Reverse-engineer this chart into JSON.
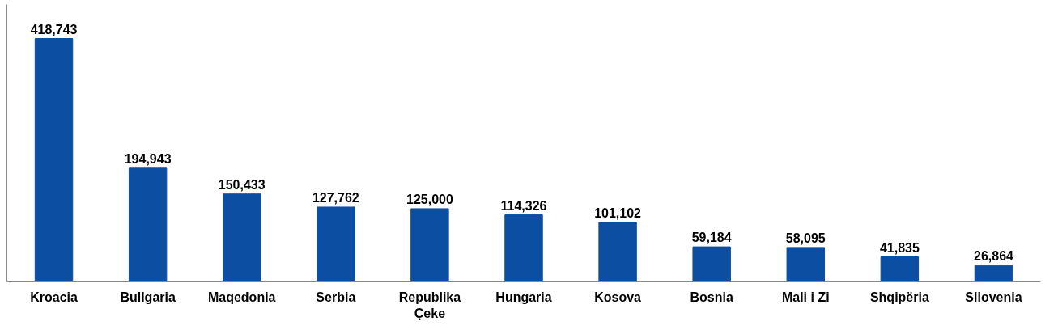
{
  "chart_data": {
    "type": "bar",
    "categories": [
      "Kroacia",
      "Bullgaria",
      "Maqedonia",
      "Serbia",
      "Republika Çeke",
      "Hungaria",
      "Kosova",
      "Bosnia",
      "Mali i Zi",
      "Shqipëria",
      "Sllovenia"
    ],
    "values": [
      418743,
      194943,
      150433,
      127762,
      125000,
      114326,
      101102,
      59184,
      58095,
      41835,
      26864
    ],
    "color": "#0b4ea2",
    "value_labels": [
      "418,743",
      "194,943",
      "150,433",
      "127,762",
      "125,000",
      "114,326",
      "101,102",
      "59,184",
      "58,095",
      "41,835",
      "26,864"
    ],
    "grid": false,
    "tick_labels": "x"
  }
}
